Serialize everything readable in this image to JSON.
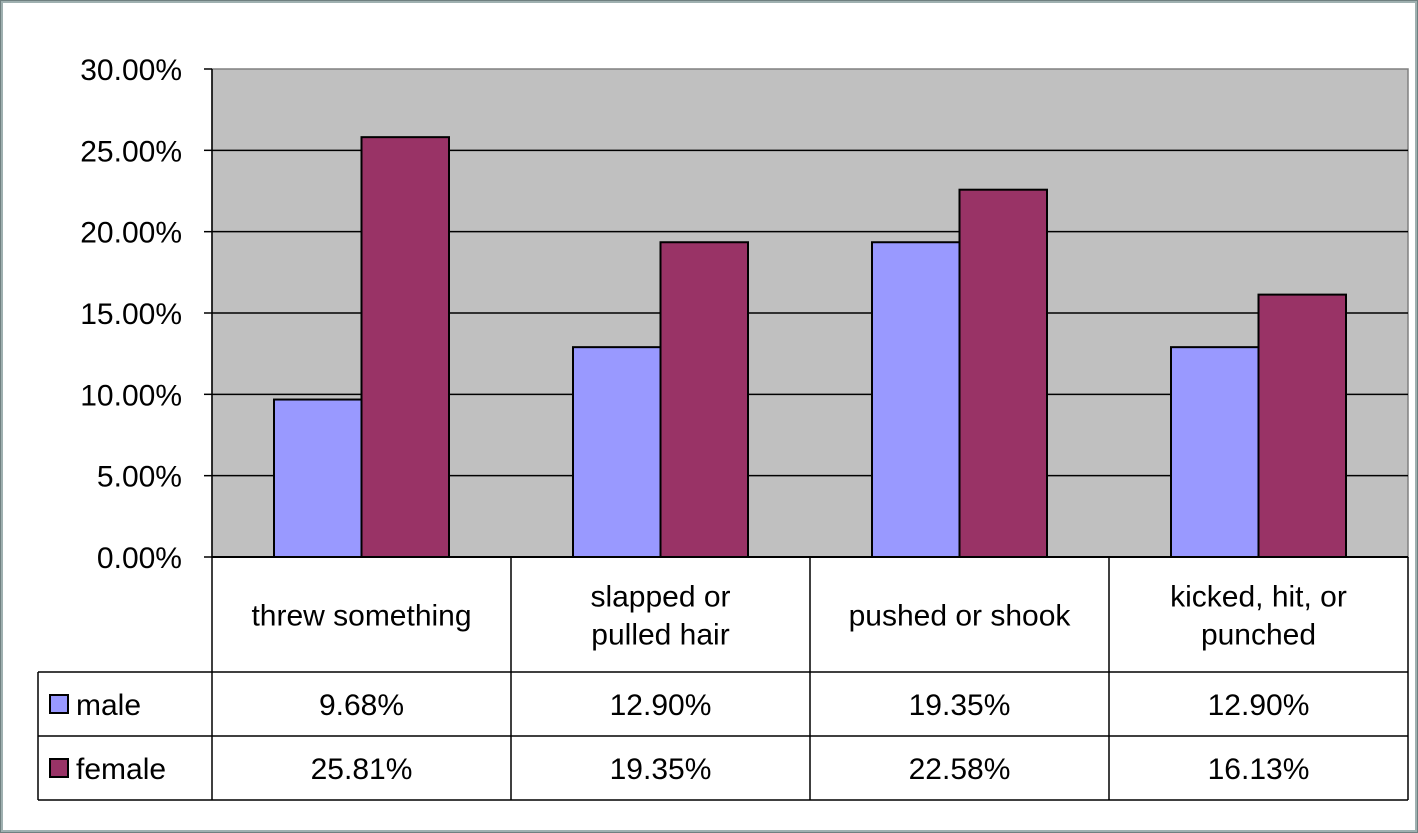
{
  "chart_data": {
    "type": "bar",
    "categories": [
      [
        "threw something"
      ],
      [
        "slapped or",
        "pulled hair"
      ],
      [
        "pushed or shook"
      ],
      [
        "kicked, hit, or",
        "punched"
      ]
    ],
    "series": [
      {
        "name": "male",
        "values": [
          9.68,
          12.9,
          19.35,
          12.9
        ],
        "color": "#9999ff",
        "labels": [
          "9.68%",
          "12.90%",
          "19.35%",
          "12.90%"
        ]
      },
      {
        "name": "female",
        "values": [
          25.81,
          19.35,
          22.58,
          16.13
        ],
        "color": "#993366",
        "labels": [
          "25.81%",
          "19.35%",
          "22.58%",
          "16.13%"
        ]
      }
    ],
    "yticks": [
      "0.00%",
      "5.00%",
      "10.00%",
      "15.00%",
      "20.00%",
      "25.00%",
      "30.00%"
    ],
    "ylim": [
      0,
      30
    ],
    "grid": true,
    "plot_background": "#c0c0c0",
    "legend_placement": "data-table-left"
  }
}
